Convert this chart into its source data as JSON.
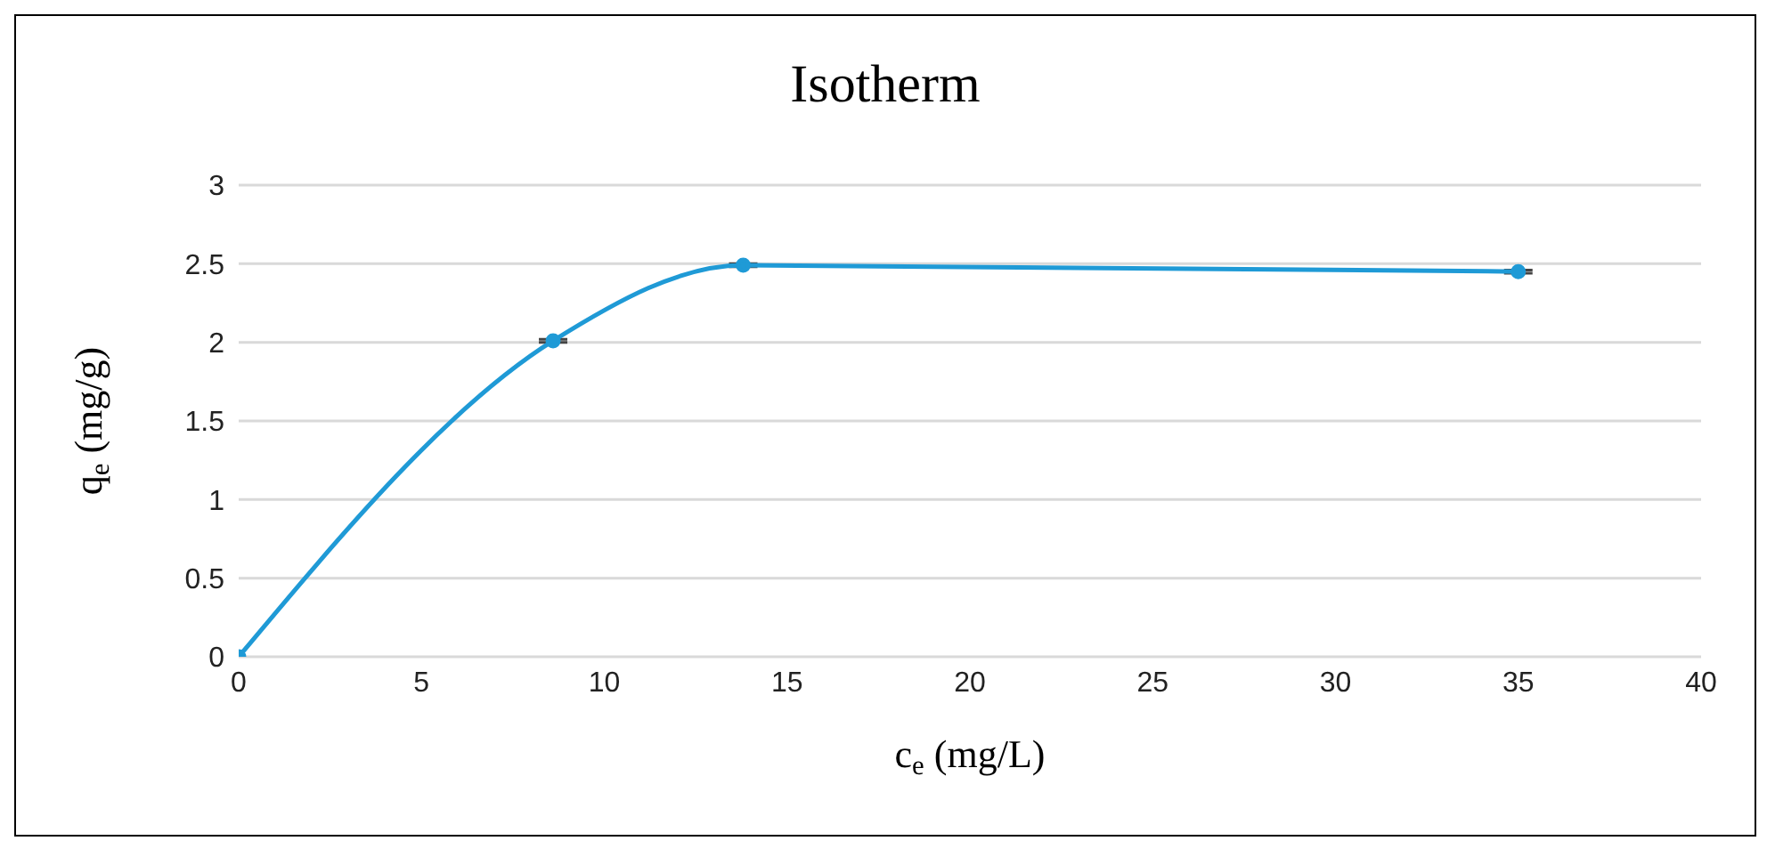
{
  "chart_data": {
    "type": "line",
    "title": "Isotherm",
    "xlabel": "c$_{e}$ (mg/L)",
    "ylabel": "q$_{e}$ (mg/g)",
    "x": [
      0,
      8.6,
      13.8,
      35
    ],
    "series": [
      {
        "color": "#1f9ad6",
        "values": [
          0,
          2.01,
          2.49,
          2.45
        ],
        "errors": [
          null,
          0.01,
          0.01,
          0.01
        ]
      }
    ],
    "xlim": [
      0,
      40
    ],
    "xticks": [
      0,
      5,
      10,
      15,
      20,
      25,
      30,
      35,
      40
    ],
    "ylim": [
      0,
      3
    ],
    "yticks": [
      0,
      0.5,
      1,
      1.5,
      2,
      2.5,
      3
    ],
    "grid": "y",
    "legend": false,
    "marker": "circle",
    "line_style": "solid"
  }
}
